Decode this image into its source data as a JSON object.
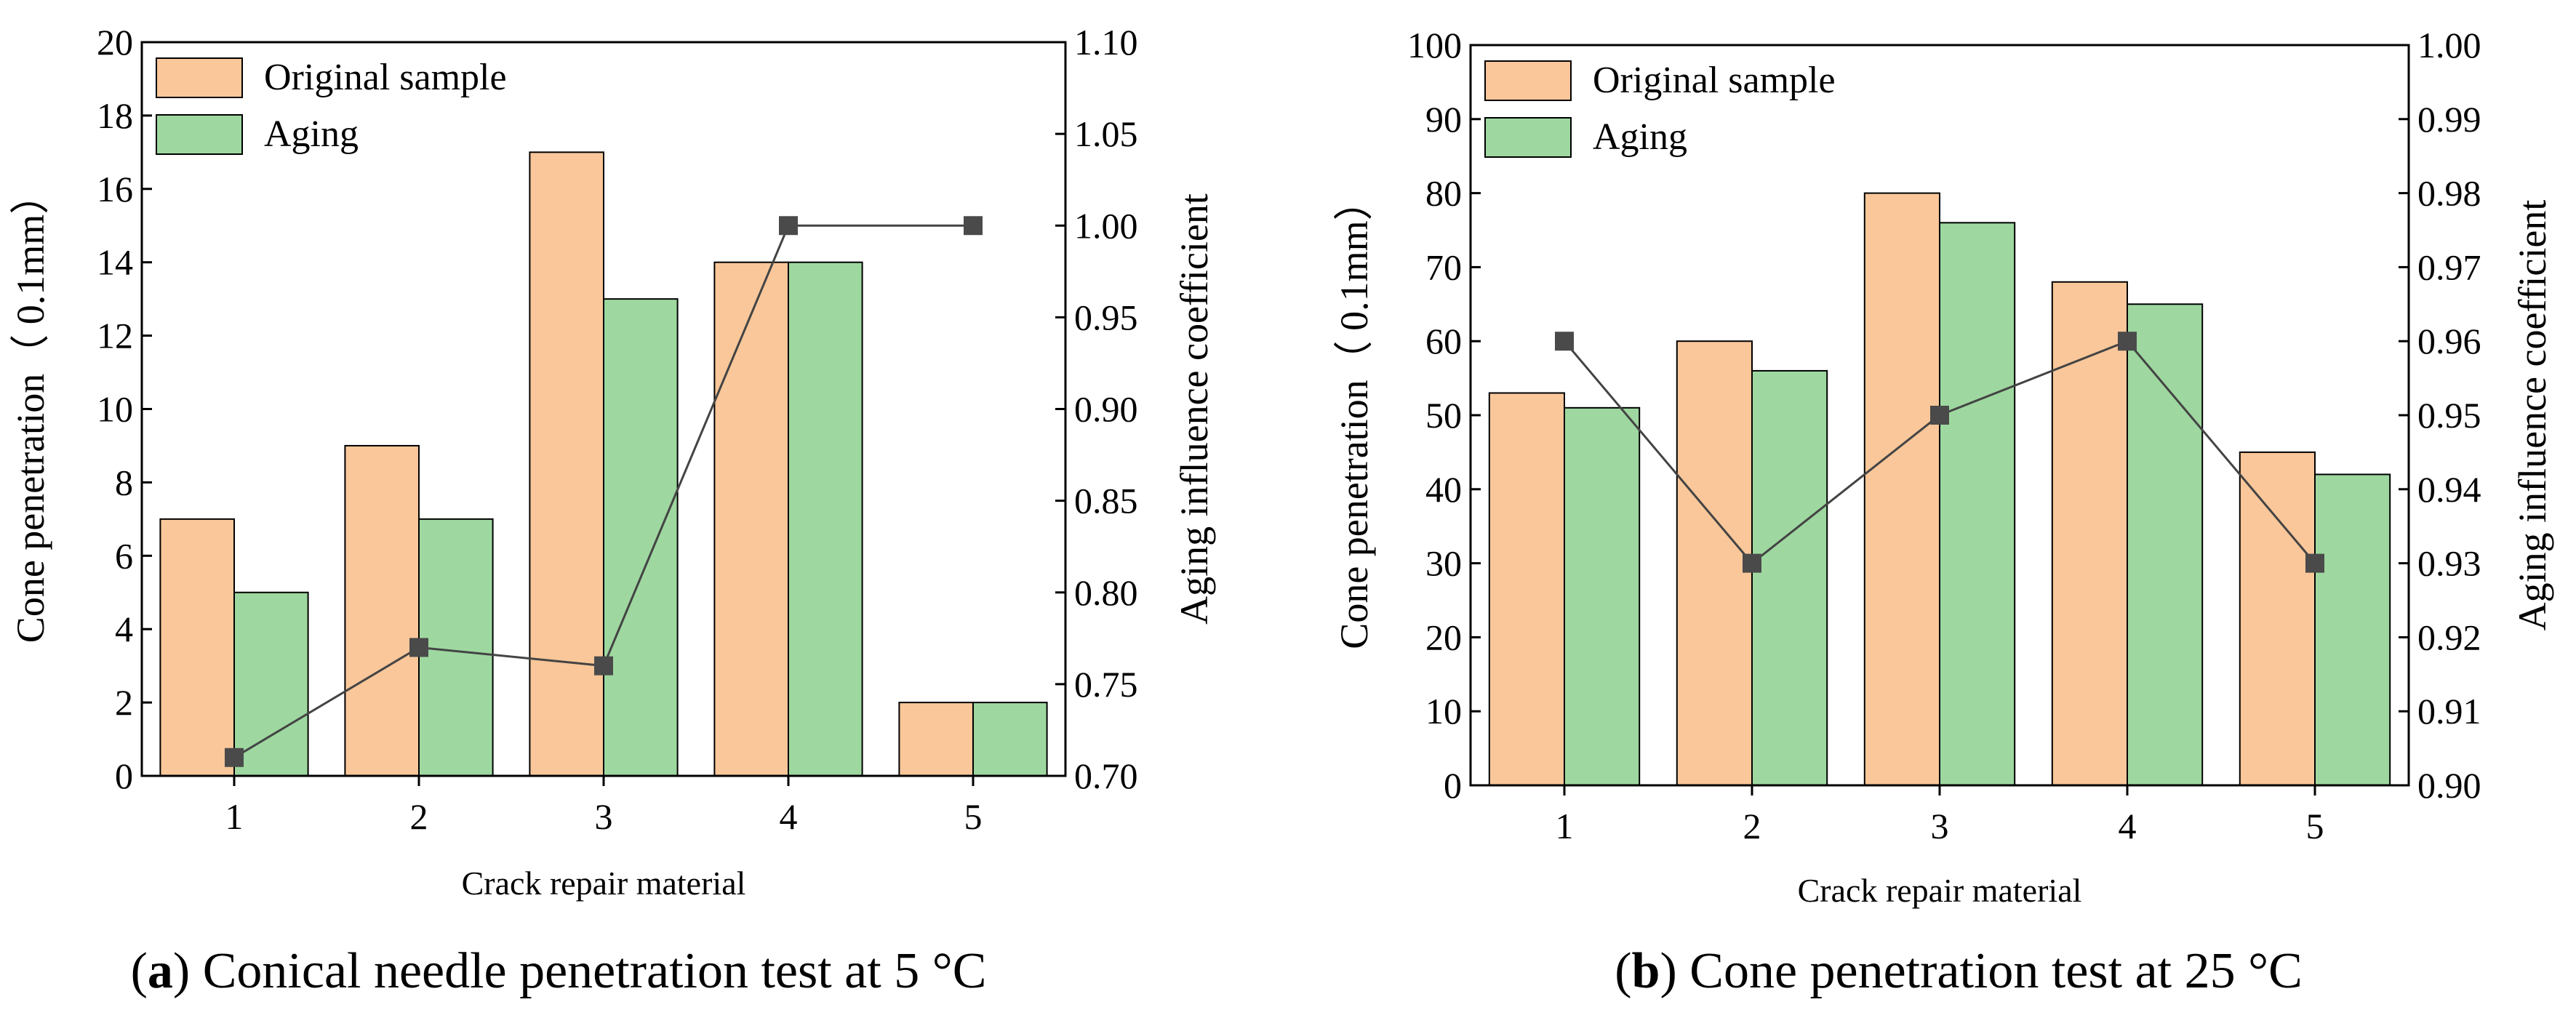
{
  "figure": {
    "captions": [
      {
        "letter": "a",
        "text": " Conical needle penetration test at 5 °C"
      },
      {
        "letter": "b",
        "text": " Cone penetration test at 25 °C"
      }
    ]
  },
  "colors": {
    "original": "#F9C79A",
    "aging": "#9ED8A0",
    "line": "#444444",
    "marker": "#4A4A4A"
  },
  "chart_data": [
    {
      "type": "bar",
      "title": "",
      "caption_letter": "a",
      "caption": "Conical needle penetration test at 5 °C",
      "xlabel": "Crack repair material",
      "ylabel": "Cone penetration（ 0.1mm）",
      "y2label": "Aging influence coefficient",
      "categories": [
        "1",
        "2",
        "3",
        "4",
        "5"
      ],
      "ylim": [
        0,
        20
      ],
      "yticks": [
        "0",
        "2",
        "4",
        "6",
        "8",
        "10",
        "12",
        "14",
        "16",
        "18",
        "20"
      ],
      "y2lim": [
        0.7,
        1.1
      ],
      "y2ticks": [
        "0.70",
        "0.75",
        "0.80",
        "0.85",
        "0.90",
        "0.95",
        "1.00",
        "1.05",
        "1.10"
      ],
      "series": [
        {
          "name": "Original sample",
          "axis": "left",
          "kind": "bar",
          "values": [
            7,
            9,
            17,
            14,
            2
          ]
        },
        {
          "name": "Aging",
          "axis": "left",
          "kind": "bar",
          "values": [
            5,
            7,
            13,
            14,
            2
          ]
        },
        {
          "name": "Aging influence coefficient",
          "axis": "right",
          "kind": "line-marker",
          "values": [
            0.71,
            0.77,
            0.76,
            1.0,
            1.0
          ]
        }
      ],
      "legend": [
        "Original sample",
        "Aging"
      ],
      "legend_position": "top-left"
    },
    {
      "type": "bar",
      "title": "",
      "caption_letter": "b",
      "caption": "Cone penetration test at 25 °C",
      "xlabel": "Crack repair material",
      "ylabel": "Cone penetration（ 0.1mm）",
      "y2label": "Aging influence coefficient",
      "categories": [
        "1",
        "2",
        "3",
        "4",
        "5"
      ],
      "ylim": [
        0,
        100
      ],
      "yticks": [
        "0",
        "10",
        "20",
        "30",
        "40",
        "50",
        "60",
        "70",
        "80",
        "90",
        "100"
      ],
      "y2lim": [
        0.9,
        1.0
      ],
      "y2ticks": [
        "0.90",
        "0.91",
        "0.92",
        "0.93",
        "0.94",
        "0.95",
        "0.96",
        "0.97",
        "0.98",
        "0.99",
        "1.00"
      ],
      "series": [
        {
          "name": "Original sample",
          "axis": "left",
          "kind": "bar",
          "values": [
            53,
            60,
            80,
            68,
            45
          ]
        },
        {
          "name": "Aging",
          "axis": "left",
          "kind": "bar",
          "values": [
            51,
            56,
            76,
            65,
            42
          ]
        },
        {
          "name": "Aging influence coefficient",
          "axis": "right",
          "kind": "line-marker",
          "values": [
            0.96,
            0.93,
            0.95,
            0.96,
            0.93
          ]
        }
      ],
      "legend": [
        "Original sample",
        "Aging"
      ],
      "legend_position": "top-left"
    }
  ]
}
